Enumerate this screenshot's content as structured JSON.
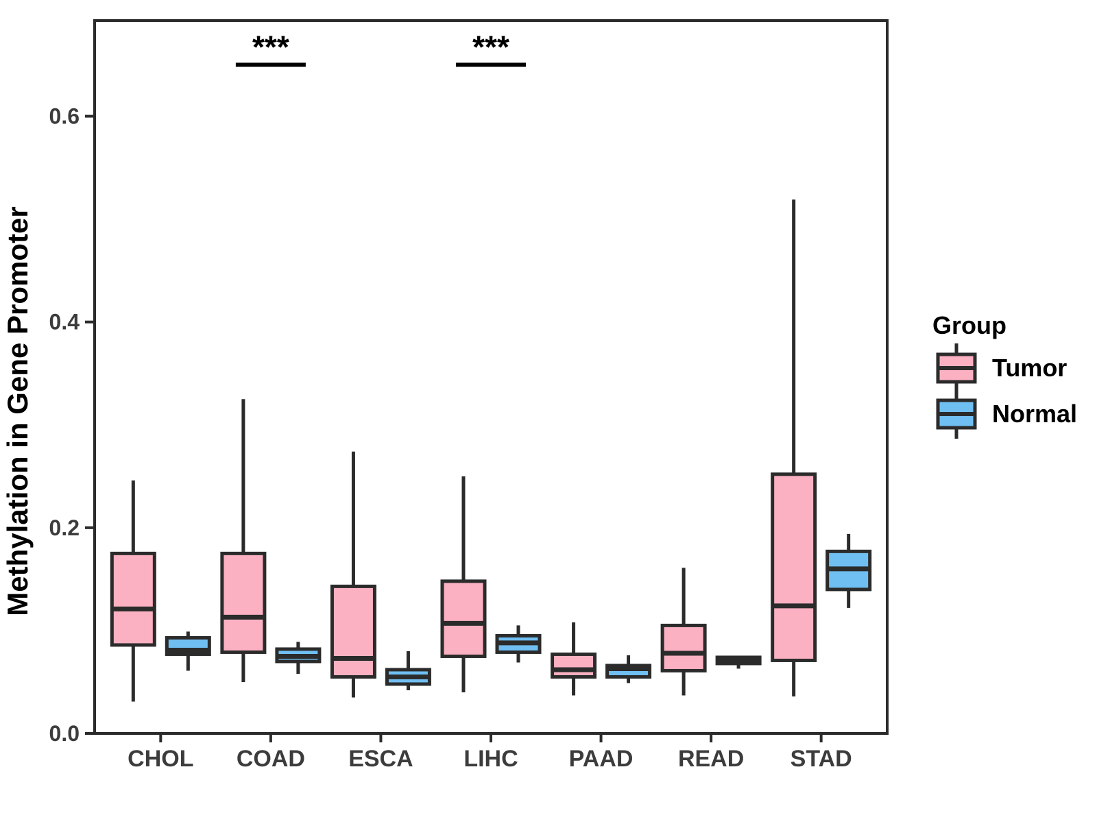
{
  "figure": {
    "y_axis_title": "Methylation in Gene Promoter",
    "x_axis_title": "",
    "legend_title": "Group"
  },
  "chart_data": {
    "type": "boxplot",
    "title": "",
    "xlabel": "",
    "ylabel": "Methylation in Gene Promoter",
    "categories": [
      "CHOL",
      "COAD",
      "ESCA",
      "LIHC",
      "PAAD",
      "READ",
      "STAD"
    ],
    "yticks": [
      0.0,
      0.2,
      0.4,
      0.6
    ],
    "ylim": [
      0,
      0.693
    ],
    "grid": false,
    "legend_position": "right",
    "legend_title": "Group",
    "colors": {
      "tumor_fill": "#FBB1C2",
      "normal_fill": "#70BFF2",
      "box_stroke": "#2B2B2B",
      "axis_text": "#3C3C3C",
      "annotation": "#000000"
    },
    "series": [
      {
        "name": "Tumor",
        "color": "#FBB1C2",
        "boxes": [
          {
            "category": "CHOL",
            "min": 0.031,
            "q1": 0.086,
            "median": 0.121,
            "q3": 0.175,
            "max": 0.246
          },
          {
            "category": "COAD",
            "min": 0.05,
            "q1": 0.079,
            "median": 0.113,
            "q3": 0.175,
            "max": 0.325
          },
          {
            "category": "ESCA",
            "min": 0.035,
            "q1": 0.055,
            "median": 0.073,
            "q3": 0.143,
            "max": 0.274
          },
          {
            "category": "LIHC",
            "min": 0.04,
            "q1": 0.075,
            "median": 0.107,
            "q3": 0.148,
            "max": 0.25
          },
          {
            "category": "PAAD",
            "min": 0.037,
            "q1": 0.055,
            "median": 0.062,
            "q3": 0.077,
            "max": 0.108
          },
          {
            "category": "READ",
            "min": 0.037,
            "q1": 0.061,
            "median": 0.078,
            "q3": 0.105,
            "max": 0.161
          },
          {
            "category": "STAD",
            "min": 0.036,
            "q1": 0.071,
            "median": 0.124,
            "q3": 0.252,
            "max": 0.519
          }
        ]
      },
      {
        "name": "Normal",
        "color": "#70BFF2",
        "boxes": [
          {
            "category": "CHOL",
            "min": 0.061,
            "q1": 0.077,
            "median": 0.081,
            "q3": 0.093,
            "max": 0.099
          },
          {
            "category": "COAD",
            "min": 0.058,
            "q1": 0.07,
            "median": 0.075,
            "q3": 0.082,
            "max": 0.089
          },
          {
            "category": "ESCA",
            "min": 0.042,
            "q1": 0.048,
            "median": 0.055,
            "q3": 0.062,
            "max": 0.08
          },
          {
            "category": "LIHC",
            "min": 0.069,
            "q1": 0.079,
            "median": 0.088,
            "q3": 0.095,
            "max": 0.105
          },
          {
            "category": "PAAD",
            "min": 0.049,
            "q1": 0.055,
            "median": 0.063,
            "q3": 0.066,
            "max": 0.076
          },
          {
            "category": "READ",
            "min": 0.063,
            "q1": 0.068,
            "median": 0.071,
            "q3": 0.074,
            "max": 0.075
          },
          {
            "category": "STAD",
            "min": 0.122,
            "q1": 0.14,
            "median": 0.16,
            "q3": 0.177,
            "max": 0.194
          }
        ]
      }
    ],
    "annotations": [
      {
        "category": "COAD",
        "label": "***",
        "y": 0.65
      },
      {
        "category": "LIHC",
        "label": "***",
        "y": 0.65
      }
    ]
  }
}
